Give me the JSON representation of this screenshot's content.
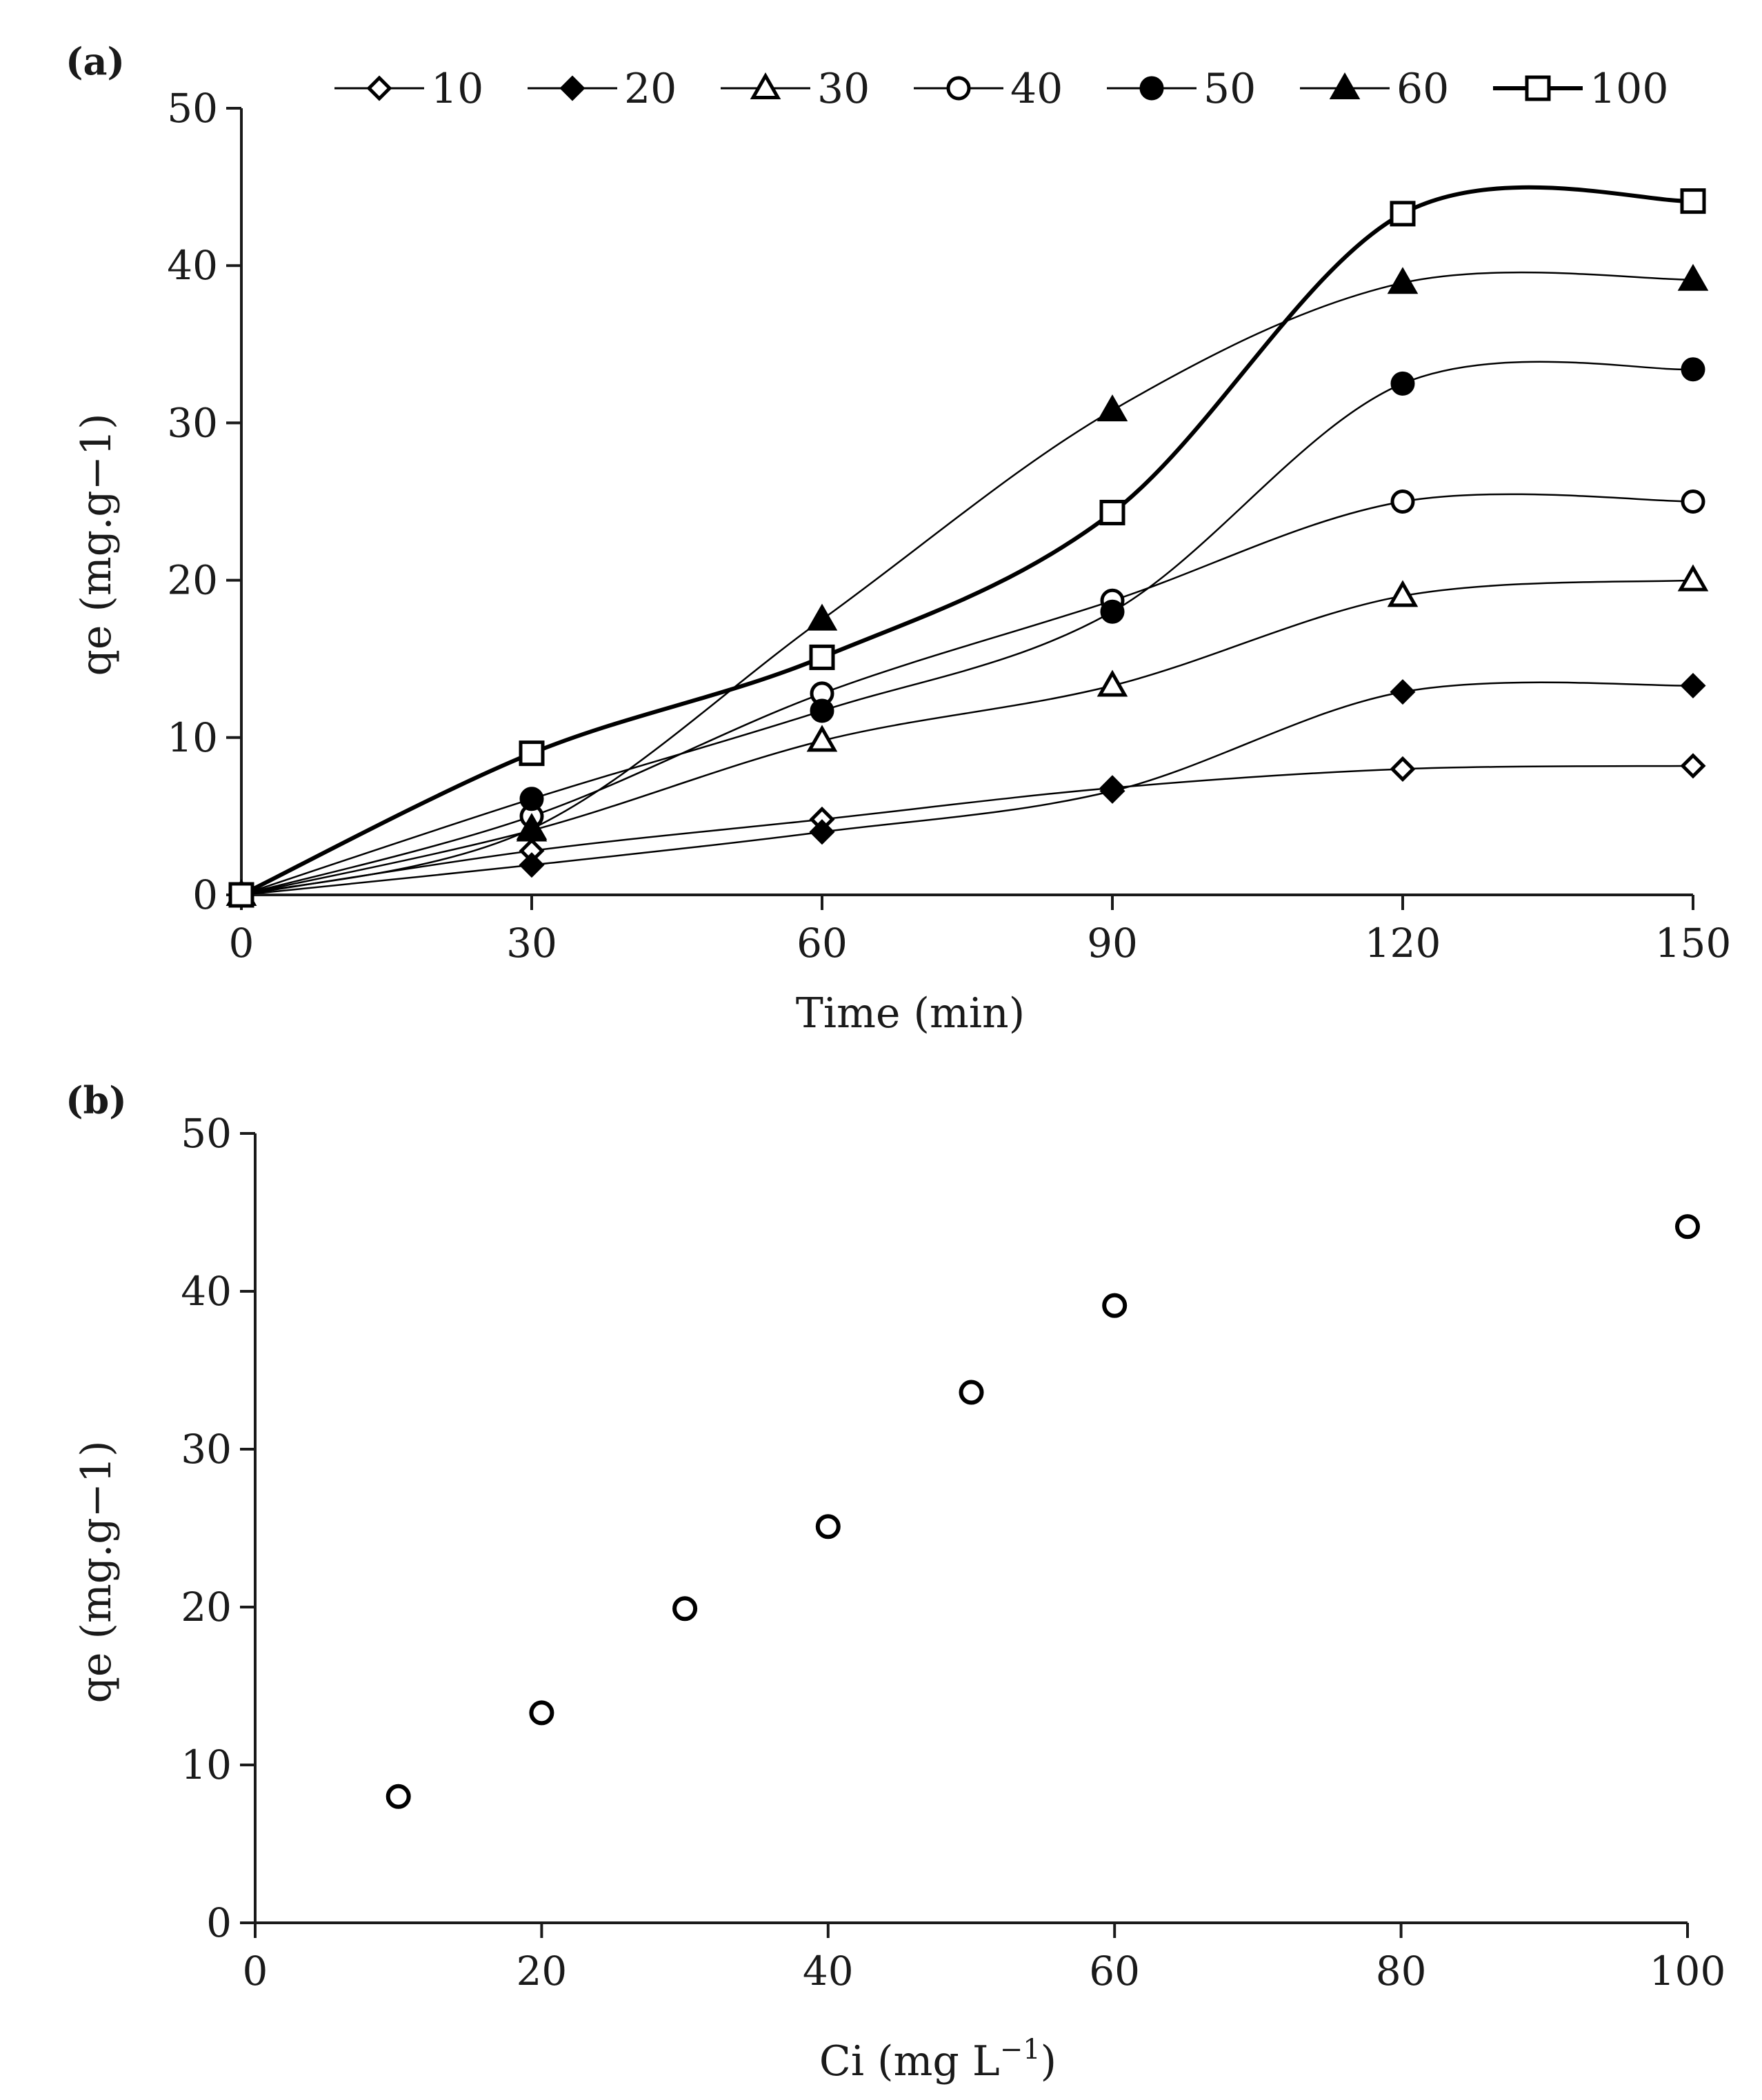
{
  "chart_data": [
    {
      "panel": "(a)",
      "type": "line",
      "xlabel": "Time (min)",
      "ylabel": "qe (mg.g−1)",
      "xlim": [
        0,
        150
      ],
      "ylim": [
        0,
        50
      ],
      "xticks": [
        0,
        30,
        60,
        90,
        120,
        150
      ],
      "yticks": [
        0,
        10,
        20,
        30,
        40,
        50
      ],
      "grid": false,
      "legend_position": "top",
      "x": [
        0,
        30,
        60,
        90,
        120,
        150
      ],
      "series": [
        {
          "name": "10",
          "marker": "diamond-open",
          "values": [
            0,
            2.8,
            4.8,
            6.8,
            8.0,
            8.2
          ]
        },
        {
          "name": "20",
          "marker": "diamond-filled",
          "values": [
            0,
            1.9,
            4.0,
            6.6,
            12.9,
            13.3
          ]
        },
        {
          "name": "30",
          "marker": "triangle-open",
          "values": [
            0,
            4.1,
            9.8,
            13.3,
            19.0,
            20.0
          ]
        },
        {
          "name": "40",
          "marker": "circle-open",
          "values": [
            0,
            5.0,
            12.8,
            18.7,
            25.0,
            25.0
          ]
        },
        {
          "name": "50",
          "marker": "circle-filled",
          "values": [
            0,
            6.1,
            11.7,
            18.0,
            32.5,
            33.4
          ]
        },
        {
          "name": "60",
          "marker": "triangle-filled",
          "values": [
            0,
            4.2,
            17.5,
            30.8,
            38.9,
            39.1
          ]
        },
        {
          "name": "100",
          "marker": "square-open",
          "values": [
            0,
            9.0,
            15.1,
            24.3,
            43.3,
            44.1
          ]
        }
      ]
    },
    {
      "panel": "(b)",
      "type": "scatter",
      "xlabel": "Ci (mg L",
      "xlabel_sup": "−1",
      "xlabel_end": ")",
      "ylabel": "qe (mg.g−1)",
      "xlim": [
        0,
        100
      ],
      "ylim": [
        0,
        50
      ],
      "xticks": [
        0,
        20,
        40,
        60,
        80,
        100
      ],
      "yticks": [
        0,
        10,
        20,
        30,
        40,
        50
      ],
      "grid": false,
      "x": [
        10,
        20,
        30,
        40,
        50,
        60,
        100
      ],
      "values": [
        8.0,
        13.3,
        19.9,
        25.1,
        33.6,
        39.1,
        44.1
      ]
    }
  ]
}
